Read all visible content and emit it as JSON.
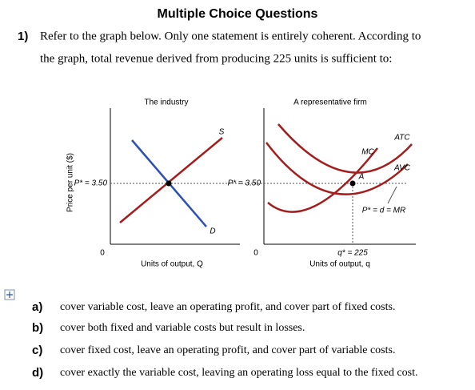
{
  "header": {
    "title": "Multiple Choice Questions"
  },
  "question": {
    "number": "1)",
    "text_lines": [
      "Refer to the graph below. Only one statement is entirely coherent. According to",
      "the graph, total revenue derived from producing 225 units is sufficient to:"
    ]
  },
  "graph": {
    "industry": {
      "title": "The industry",
      "y_label": "Price per unit ($)",
      "price_label": "P* = 3.50",
      "supply_label": "S",
      "demand_label": "D",
      "origin": "0",
      "x_label": "Units of output, Q"
    },
    "firm": {
      "title": "A representative firm",
      "price_label": "P* = 3.50",
      "mc_label": "MC",
      "atc_label": "ATC",
      "avc_label": "AVC",
      "point_label": "A",
      "mr_label": "P* = d = MR",
      "origin": "0",
      "quantity_label": "q* = 225",
      "x_label": "Units of output, q"
    }
  },
  "options": [
    {
      "letter": "a)",
      "text": "cover variable cost, leave an operating profit, and cover part of fixed costs."
    },
    {
      "letter": "b)",
      "text": "cover both fixed and variable costs but result in losses."
    },
    {
      "letter": "c)",
      "text": "cover fixed cost, leave an operating profit, and cover part of variable costs."
    },
    {
      "letter": "d)",
      "text": "cover exactly the variable cost, leaving an operating loss equal to the fixed cost."
    }
  ]
}
